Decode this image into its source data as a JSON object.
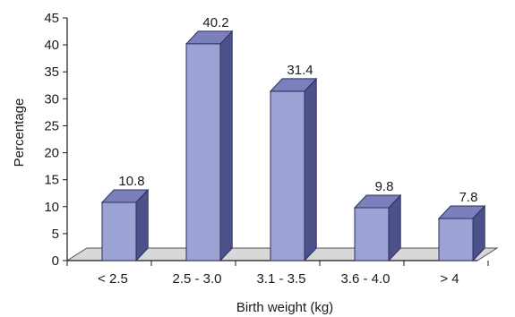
{
  "chart_data": {
    "type": "bar",
    "style": "3d-column",
    "categories": [
      "< 2.5",
      "2.5 - 3.0",
      "3.1 - 3.5",
      "3.6 - 4.0",
      "> 4"
    ],
    "values": [
      10.8,
      40.2,
      31.4,
      9.8,
      7.8
    ],
    "data_labels": [
      "10.8",
      "40.2",
      "31.4",
      "9.8",
      "7.8"
    ],
    "xlabel": "Birth weight (kg)",
    "ylabel": "Percentage",
    "ylim": [
      0,
      45
    ],
    "yticks": [
      "0",
      "5",
      "10",
      "15",
      "20",
      "25",
      "30",
      "35",
      "40",
      "45"
    ],
    "grid": false,
    "legend": "none",
    "colors": {
      "bar_front": "#9ca3d4",
      "bar_side": "#4c5189",
      "bar_top": "#7b80bc",
      "floor": "#d8d8d8",
      "axis": "#1a1a1a"
    }
  }
}
